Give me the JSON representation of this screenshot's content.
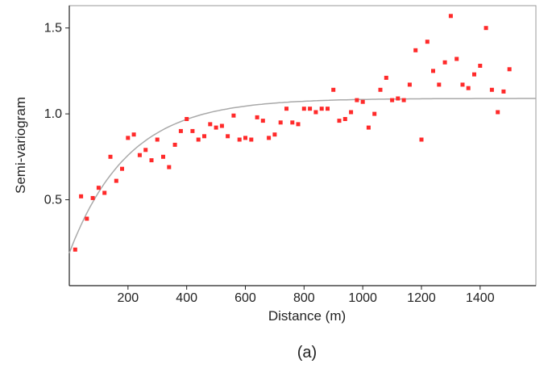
{
  "figure": {
    "caption": "(a)"
  },
  "chart_data": {
    "type": "scatter",
    "xlabel": "Distance (m)",
    "ylabel": "Semi-variogram",
    "xlim": [
      0,
      1590
    ],
    "ylim": [
      0,
      1.63
    ],
    "xticks": [
      200,
      400,
      600,
      800,
      1000,
      1200,
      1400
    ],
    "xtick_labels": [
      "200",
      "400",
      "600",
      "800",
      "1000",
      "1200",
      "1400"
    ],
    "yticks": [
      0.5,
      1.0,
      1.5
    ],
    "ytick_labels": [
      "0.5",
      "1.0",
      "1.5"
    ],
    "grid": false,
    "legend": "none",
    "colors": {
      "points": "#ff2a2a",
      "model": "#a9a9a9",
      "frame": "#9a9a9a",
      "axis": "#222222"
    },
    "series": [
      {
        "kind": "points",
        "x": [
          20,
          40,
          60,
          80,
          100,
          120,
          140,
          160,
          180,
          200,
          220,
          240,
          260,
          280,
          300,
          320,
          340,
          360,
          380,
          400,
          420,
          440,
          460,
          480,
          500,
          520,
          540,
          560,
          580,
          600,
          620,
          640,
          660,
          680,
          700,
          720,
          740,
          760,
          780,
          800,
          820,
          840,
          860,
          880,
          900,
          920,
          940,
          960,
          980,
          1000,
          1020,
          1040,
          1060,
          1080,
          1100,
          1120,
          1140,
          1160,
          1180,
          1200,
          1220,
          1240,
          1260,
          1280,
          1300,
          1320,
          1340,
          1360,
          1380,
          1400,
          1420,
          1440,
          1460,
          1480,
          1500
        ],
        "y": [
          0.21,
          0.52,
          0.39,
          0.51,
          0.57,
          0.54,
          0.75,
          0.61,
          0.68,
          0.86,
          0.88,
          0.76,
          0.79,
          0.73,
          0.85,
          0.75,
          0.69,
          0.82,
          0.9,
          0.97,
          0.9,
          0.85,
          0.87,
          0.94,
          0.92,
          0.93,
          0.87,
          0.99,
          0.85,
          0.86,
          0.85,
          0.98,
          0.96,
          0.86,
          0.88,
          0.95,
          1.03,
          0.95,
          0.94,
          1.03,
          1.03,
          1.01,
          1.03,
          1.03,
          1.14,
          0.96,
          0.97,
          1.01,
          1.08,
          1.07,
          0.92,
          1.0,
          1.14,
          1.21,
          1.08,
          1.09,
          1.08,
          1.17,
          1.37,
          0.85,
          1.42,
          1.25,
          1.17,
          1.3,
          1.57,
          1.32,
          1.17,
          1.15,
          1.23,
          1.28,
          1.5,
          1.14,
          1.01,
          1.13,
          1.26
        ]
      },
      {
        "kind": "model_curve",
        "model": "exponential",
        "nugget": 0.19,
        "sill": 1.09,
        "range_param": 200,
        "x_start": 0,
        "x_end": 1590
      }
    ]
  }
}
